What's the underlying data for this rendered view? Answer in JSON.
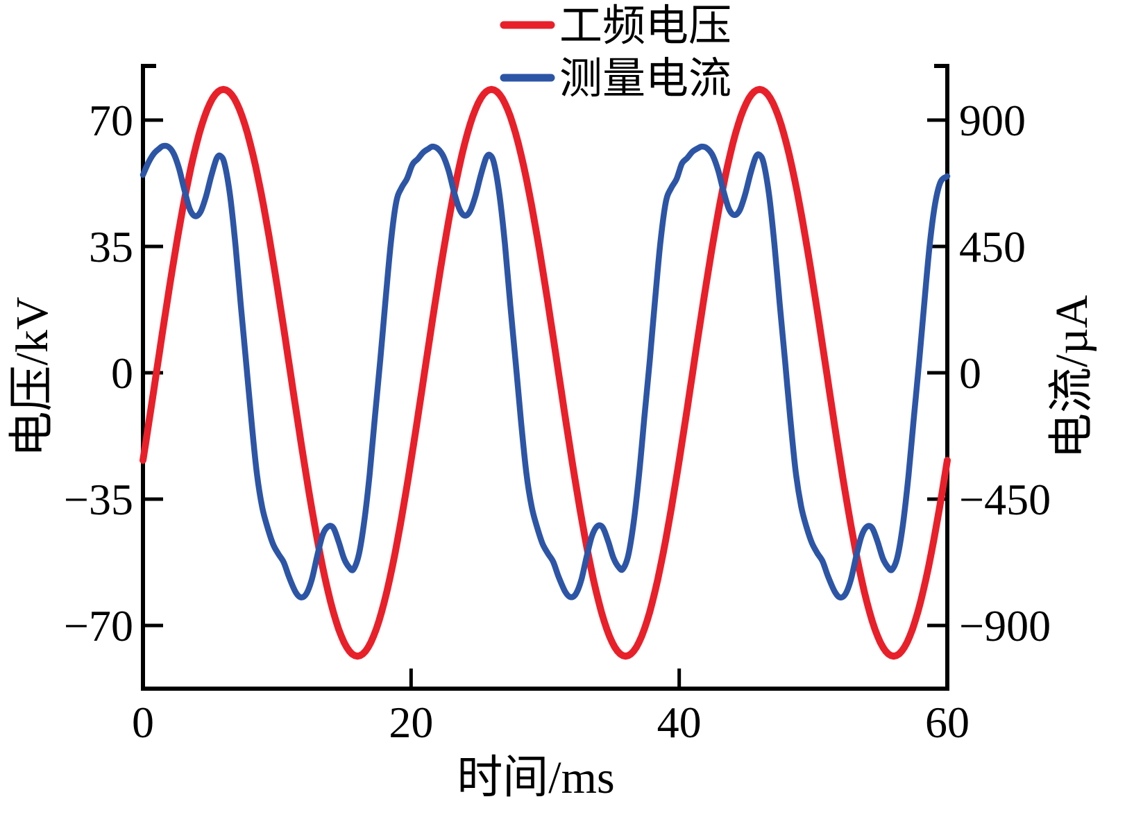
{
  "chart_data": {
    "type": "line",
    "title": "",
    "xlabel": "时间/ms",
    "ylabel_left": "电压/kV",
    "ylabel_right": "电流/µA",
    "x_range": [
      0,
      60
    ],
    "y_left_range": [
      -87.5,
      85.0
    ],
    "y_right_range": [
      -1125,
      1093
    ],
    "grid": false,
    "legend_position": "top-center",
    "x_ticks": [
      {
        "value": 0,
        "label": "0",
        "mark": false
      },
      {
        "value": 20,
        "label": "20",
        "mark": true
      },
      {
        "value": 40,
        "label": "40",
        "mark": true
      },
      {
        "value": 60,
        "label": "60",
        "mark": false
      }
    ],
    "y_left_ticks": [
      {
        "value": 70,
        "label": "70"
      },
      {
        "value": 35,
        "label": "35"
      },
      {
        "value": 0,
        "label": "0"
      },
      {
        "value": -35,
        "label": "−35"
      },
      {
        "value": -70,
        "label": "−70"
      }
    ],
    "y_right_ticks": [
      {
        "value": 900,
        "label": "900"
      },
      {
        "value": 450,
        "label": "450"
      },
      {
        "value": 0,
        "label": "0"
      },
      {
        "value": -450,
        "label": "−450"
      },
      {
        "value": -900,
        "label": "−900"
      }
    ],
    "legend": {
      "items": [
        {
          "label": "工频电压",
          "color": "#e8202a"
        },
        {
          "label": "测量电流",
          "color": "#2d55a6"
        }
      ]
    },
    "series": [
      {
        "name": "工频电压",
        "axis": "left",
        "unit": "kV",
        "color": "#e8202a",
        "model": {
          "type": "sine",
          "amplitude": 78.5,
          "period": 20,
          "phase_shift": 1.0,
          "formula": "V(t) = 78.5·sin(2π(t−1)/20) kV, peaks ≈ +79 kV at t = 6, 26, 46 ms; minima ≈ −79 kV at t = 16, 36, 56 ms"
        }
      },
      {
        "name": "测量电流",
        "axis": "right",
        "unit": "µA",
        "color": "#2d55a6",
        "points": [
          [
            0,
            705
          ],
          [
            0.4,
            748
          ],
          [
            0.8,
            780
          ],
          [
            1.2,
            798
          ],
          [
            1.5,
            808
          ],
          [
            1.9,
            805
          ],
          [
            2.3,
            780
          ],
          [
            2.7,
            726
          ],
          [
            3.1,
            650
          ],
          [
            3.5,
            582
          ],
          [
            3.9,
            558
          ],
          [
            4.3,
            574
          ],
          [
            4.7,
            628
          ],
          [
            5.1,
            702
          ],
          [
            5.5,
            764
          ],
          [
            5.8,
            772
          ],
          [
            6.1,
            742
          ],
          [
            6.5,
            630
          ],
          [
            6.9,
            455
          ],
          [
            7.3,
            240
          ],
          [
            7.7,
            35
          ],
          [
            8.1,
            -175
          ],
          [
            8.5,
            -360
          ],
          [
            8.9,
            -480
          ],
          [
            9.3,
            -552
          ],
          [
            9.7,
            -610
          ],
          [
            10.1,
            -645
          ],
          [
            10.5,
            -675
          ],
          [
            10.9,
            -728
          ],
          [
            11.4,
            -782
          ],
          [
            11.8,
            -800
          ],
          [
            12.2,
            -786
          ],
          [
            12.6,
            -735
          ],
          [
            13.0,
            -652
          ],
          [
            13.4,
            -578
          ],
          [
            13.8,
            -548
          ],
          [
            14.2,
            -552
          ],
          [
            14.6,
            -602
          ],
          [
            15.0,
            -662
          ],
          [
            15.4,
            -694
          ],
          [
            15.7,
            -700
          ],
          [
            16.1,
            -648
          ],
          [
            16.5,
            -532
          ],
          [
            16.9,
            -365
          ],
          [
            17.3,
            -158
          ],
          [
            17.7,
            45
          ],
          [
            18.1,
            262
          ],
          [
            18.5,
            468
          ],
          [
            18.9,
            610
          ],
          [
            19.3,
            660
          ],
          [
            19.7,
            692
          ],
          [
            20.1,
            742
          ],
          [
            20.5,
            762
          ],
          [
            20.9,
            785
          ],
          [
            21.3,
            798
          ],
          [
            21.6,
            806
          ],
          [
            22.0,
            798
          ],
          [
            22.4,
            772
          ],
          [
            22.8,
            720
          ],
          [
            23.2,
            645
          ],
          [
            23.6,
            584
          ],
          [
            24.0,
            560
          ],
          [
            24.4,
            576
          ],
          [
            24.8,
            630
          ],
          [
            25.2,
            704
          ],
          [
            25.6,
            766
          ],
          [
            25.9,
            775
          ],
          [
            26.2,
            744
          ],
          [
            26.6,
            632
          ],
          [
            27.0,
            458
          ],
          [
            27.4,
            242
          ],
          [
            27.8,
            38
          ],
          [
            28.2,
            -172
          ],
          [
            28.6,
            -358
          ],
          [
            29.0,
            -478
          ],
          [
            29.4,
            -550
          ],
          [
            29.8,
            -608
          ],
          [
            30.2,
            -643
          ],
          [
            30.6,
            -673
          ],
          [
            31.0,
            -726
          ],
          [
            31.5,
            -780
          ],
          [
            31.9,
            -799
          ],
          [
            32.3,
            -787
          ],
          [
            32.7,
            -737
          ],
          [
            33.1,
            -654
          ],
          [
            33.5,
            -580
          ],
          [
            33.9,
            -546
          ],
          [
            34.3,
            -551
          ],
          [
            34.7,
            -600
          ],
          [
            35.1,
            -660
          ],
          [
            35.5,
            -693
          ],
          [
            35.8,
            -699
          ],
          [
            36.2,
            -650
          ],
          [
            36.6,
            -534
          ],
          [
            37.0,
            -366
          ],
          [
            37.4,
            -160
          ],
          [
            37.8,
            42
          ],
          [
            38.2,
            260
          ],
          [
            38.6,
            465
          ],
          [
            39.0,
            608
          ],
          [
            39.4,
            658
          ],
          [
            39.8,
            690
          ],
          [
            40.2,
            745
          ],
          [
            40.6,
            765
          ],
          [
            41.0,
            788
          ],
          [
            41.4,
            800
          ],
          [
            41.7,
            806
          ],
          [
            42.1,
            799
          ],
          [
            42.5,
            774
          ],
          [
            42.9,
            722
          ],
          [
            43.3,
            648
          ],
          [
            43.7,
            585
          ],
          [
            44.1,
            562
          ],
          [
            44.5,
            578
          ],
          [
            44.9,
            632
          ],
          [
            45.3,
            706
          ],
          [
            45.7,
            768
          ],
          [
            46.0,
            776
          ],
          [
            46.3,
            746
          ],
          [
            46.7,
            635
          ],
          [
            47.1,
            460
          ],
          [
            47.5,
            245
          ],
          [
            47.9,
            40
          ],
          [
            48.3,
            -170
          ],
          [
            48.7,
            -356
          ],
          [
            49.1,
            -476
          ],
          [
            49.5,
            -550
          ],
          [
            49.9,
            -606
          ],
          [
            50.3,
            -642
          ],
          [
            50.7,
            -672
          ],
          [
            51.1,
            -725
          ],
          [
            51.6,
            -779
          ],
          [
            52.0,
            -800
          ],
          [
            52.4,
            -788
          ],
          [
            52.8,
            -738
          ],
          [
            53.2,
            -655
          ],
          [
            53.6,
            -581
          ],
          [
            54.0,
            -548
          ],
          [
            54.4,
            -553
          ],
          [
            54.8,
            -602
          ],
          [
            55.2,
            -662
          ],
          [
            55.6,
            -694
          ],
          [
            55.9,
            -700
          ],
          [
            56.3,
            -652
          ],
          [
            56.7,
            -536
          ],
          [
            57.1,
            -368
          ],
          [
            57.5,
            -162
          ],
          [
            57.9,
            40
          ],
          [
            58.3,
            258
          ],
          [
            58.7,
            462
          ],
          [
            59.1,
            605
          ],
          [
            59.5,
            680
          ],
          [
            60,
            700
          ]
        ]
      }
    ]
  }
}
